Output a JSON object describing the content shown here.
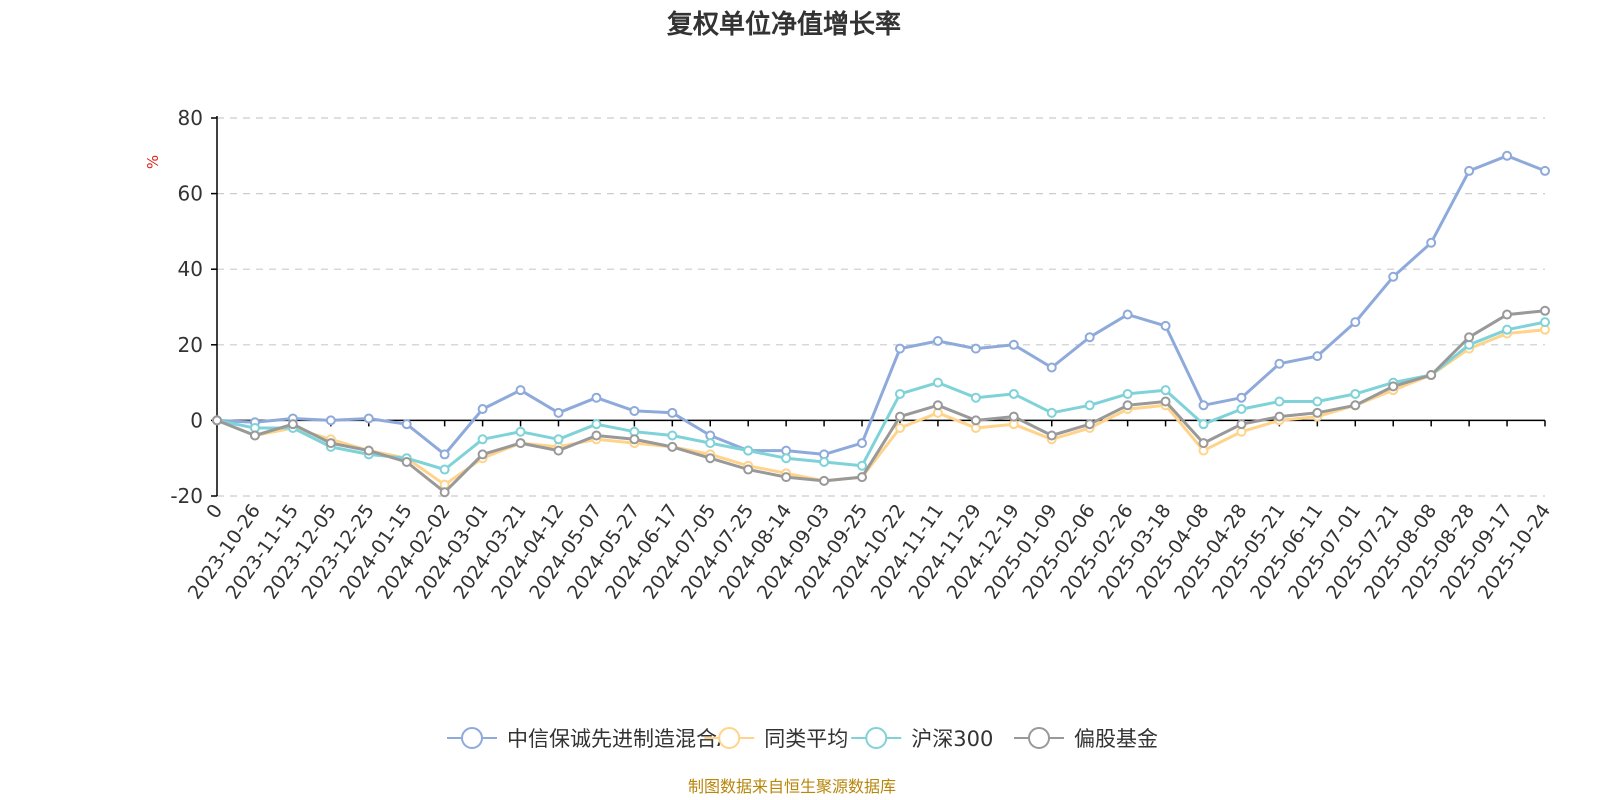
{
  "chart_data": {
    "type": "line",
    "title": "复权单位净值增长率",
    "ylabel": "%",
    "ylim": [
      -20,
      80
    ],
    "yticks": [
      -20,
      0,
      20,
      40,
      60,
      80
    ],
    "grid": true,
    "legend_position": "bottom",
    "x_tick_labels": [
      "0",
      "2023-10-26",
      "2023-11-15",
      "2023-12-05",
      "2023-12-25",
      "2024-01-15",
      "2024-02-02",
      "2024-03-01",
      "2024-03-21",
      "2024-04-12",
      "2024-05-07",
      "2024-05-27",
      "2024-06-17",
      "2024-07-05",
      "2024-07-25",
      "2024-08-14",
      "2024-09-03",
      "2024-09-25",
      "2024-10-22",
      "2024-11-11",
      "2024-11-29",
      "2024-12-19",
      "2025-01-09",
      "2025-02-06",
      "2025-02-26",
      "2025-03-18",
      "2025-04-08",
      "2025-04-28",
      "2025-05-21",
      "2025-06-11",
      "2025-07-01",
      "2025-07-21",
      "2025-08-08",
      "2025-08-28",
      "2025-09-17",
      "2025-10-24"
    ],
    "series": [
      {
        "name": "中信保诚先进制造混合A",
        "color": "#8eaadb",
        "values": [
          0,
          -0.5,
          0.5,
          0,
          0.5,
          -1,
          -9,
          3,
          8,
          2,
          6,
          2.5,
          2,
          -4,
          -8,
          -8,
          -9,
          -6,
          19,
          21,
          19,
          20,
          14,
          22,
          28,
          25,
          4,
          6,
          15,
          17,
          26,
          38,
          47,
          66,
          70,
          66
        ]
      },
      {
        "name": "同类平均",
        "color": "#ffd48a",
        "values": [
          0,
          -4,
          -2,
          -5,
          -8,
          -10,
          -17,
          -10,
          -6,
          -7,
          -5,
          -6,
          -7,
          -9,
          -12,
          -14,
          -16,
          -15,
          -2,
          2,
          -2,
          -1,
          -5,
          -2,
          3,
          4,
          -8,
          -3,
          0,
          1,
          4,
          8,
          12,
          19,
          23,
          24
        ]
      },
      {
        "name": "沪深300",
        "color": "#7fd3d8",
        "values": [
          0,
          -2,
          -2,
          -7,
          -9,
          -10,
          -13,
          -5,
          -3,
          -5,
          -1,
          -3,
          -4,
          -6,
          -8,
          -10,
          -11,
          -12,
          7,
          10,
          6,
          7,
          2,
          4,
          7,
          8,
          -1,
          3,
          5,
          5,
          7,
          10,
          12,
          20,
          24,
          26
        ]
      },
      {
        "name": "偏股基金",
        "color": "#999999",
        "values": [
          0,
          -4,
          -1,
          -6,
          -8,
          -11,
          -19,
          -9,
          -6,
          -8,
          -4,
          -5,
          -7,
          -10,
          -13,
          -15,
          -16,
          -15,
          1,
          4,
          0,
          1,
          -4,
          -1,
          4,
          5,
          -6,
          -1,
          1,
          2,
          4,
          9,
          12,
          22,
          28,
          29
        ]
      }
    ]
  },
  "footer": {
    "source": "制图数据来自恒生聚源数据库"
  }
}
